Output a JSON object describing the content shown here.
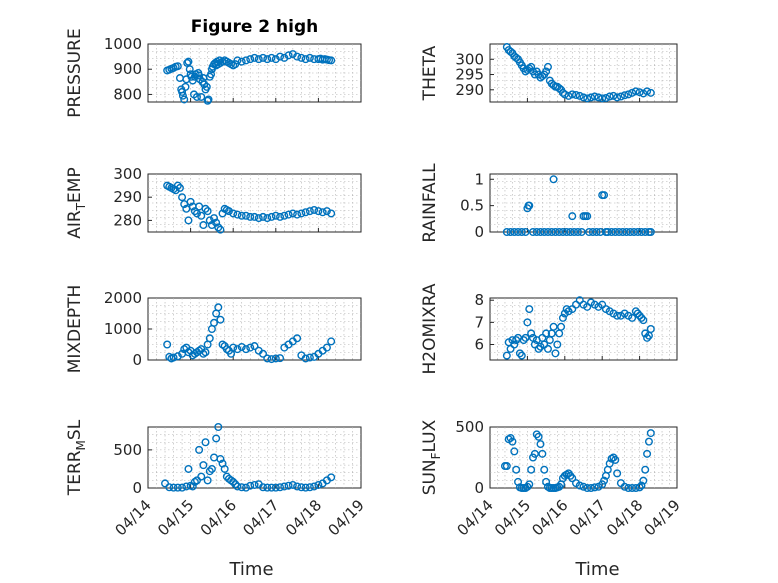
{
  "figure": {
    "title": "Figure 2 high",
    "xlabel": "Time"
  },
  "chart_data": [
    {
      "type": "scatter",
      "title": "Figure 2 high",
      "ylabel": "PRESSURE",
      "ylim": [
        770,
        1000
      ],
      "yticks": [
        800,
        900,
        1000
      ],
      "xlim": [
        "04/14",
        "04/19"
      ],
      "xticks": [
        "04/14",
        "04/15",
        "04/16",
        "04/17",
        "04/18",
        "04/19"
      ],
      "x_days": [
        0.45,
        0.5,
        0.55,
        0.6,
        0.65,
        0.7,
        0.75,
        0.78,
        0.8,
        0.82,
        0.85,
        0.88,
        0.9,
        0.92,
        0.95,
        0.98,
        1.0,
        1.02,
        1.05,
        1.08,
        1.1,
        1.12,
        1.15,
        1.18,
        1.2,
        1.22,
        1.25,
        1.28,
        1.3,
        1.32,
        1.35,
        1.38,
        1.4,
        1.42,
        1.45,
        1.48,
        1.5,
        1.52,
        1.55,
        1.58,
        1.6,
        1.62,
        1.65,
        1.68,
        1.7,
        1.75,
        1.8,
        1.85,
        1.9,
        1.95,
        2.0,
        2.05,
        2.1,
        2.2,
        2.3,
        2.4,
        2.5,
        2.6,
        2.7,
        2.8,
        2.9,
        3.0,
        3.1,
        3.2,
        3.3,
        3.4,
        3.5,
        3.6,
        3.7,
        3.8,
        3.9,
        4.0,
        4.05,
        4.1,
        4.15,
        4.2,
        4.25,
        4.3
      ],
      "values": [
        895,
        898,
        902,
        905,
        910,
        912,
        865,
        820,
        810,
        795,
        780,
        830,
        860,
        925,
        930,
        900,
        880,
        870,
        855,
        800,
        870,
        880,
        790,
        885,
        875,
        860,
        790,
        850,
        865,
        840,
        820,
        830,
        775,
        780,
        870,
        880,
        900,
        910,
        920,
        925,
        915,
        930,
        920,
        935,
        925,
        930,
        935,
        930,
        925,
        920,
        915,
        920,
        935,
        930,
        935,
        940,
        945,
        940,
        945,
        940,
        945,
        940,
        950,
        945,
        955,
        960,
        950,
        945,
        940,
        945,
        940,
        940,
        942,
        938,
        940,
        938,
        936,
        935
      ]
    },
    {
      "type": "scatter",
      "ylabel": "THETA",
      "ylim": [
        286,
        305
      ],
      "yticks": [
        290,
        295,
        300
      ],
      "xlim": [
        "04/14",
        "04/19"
      ],
      "xticks": [
        "04/14",
        "04/15",
        "04/16",
        "04/17",
        "04/18",
        "04/19"
      ],
      "x_days": [
        0.45,
        0.5,
        0.55,
        0.6,
        0.65,
        0.7,
        0.75,
        0.8,
        0.85,
        0.9,
        0.95,
        1.0,
        1.05,
        1.1,
        1.15,
        1.2,
        1.25,
        1.3,
        1.35,
        1.4,
        1.45,
        1.5,
        1.55,
        1.6,
        1.65,
        1.7,
        1.75,
        1.8,
        1.85,
        1.9,
        1.95,
        2.0,
        2.1,
        2.2,
        2.3,
        2.4,
        2.5,
        2.6,
        2.7,
        2.8,
        2.9,
        3.0,
        3.1,
        3.2,
        3.3,
        3.4,
        3.5,
        3.6,
        3.7,
        3.8,
        3.9,
        4.0,
        4.1,
        4.2,
        4.3
      ],
      "values": [
        304,
        303,
        302.5,
        302,
        301,
        300.5,
        300,
        299,
        298,
        297,
        296,
        296.5,
        297,
        297.5,
        296,
        295,
        296,
        295,
        294,
        294.5,
        295,
        296,
        297.5,
        293,
        292,
        291.5,
        291,
        291,
        290.5,
        290,
        289,
        288.5,
        288,
        288.5,
        288.3,
        288,
        287.5,
        287.2,
        287.5,
        287.8,
        287.5,
        287.2,
        287.3,
        287.8,
        288,
        287.5,
        287.8,
        288.2,
        288.5,
        289,
        289.5,
        289.2,
        288.8,
        289.5,
        289
      ]
    },
    {
      "type": "scatter",
      "ylabel": "AIR_TEMP",
      "ylim": [
        275,
        300
      ],
      "yticks": [
        280,
        290,
        300
      ],
      "xlim": [
        "04/14",
        "04/19"
      ],
      "xticks": [
        "04/14",
        "04/15",
        "04/16",
        "04/17",
        "04/18",
        "04/19"
      ],
      "x_days": [
        0.45,
        0.5,
        0.55,
        0.6,
        0.65,
        0.7,
        0.75,
        0.8,
        0.85,
        0.9,
        0.95,
        1.0,
        1.05,
        1.1,
        1.15,
        1.2,
        1.25,
        1.3,
        1.35,
        1.4,
        1.45,
        1.5,
        1.55,
        1.6,
        1.65,
        1.7,
        1.75,
        1.8,
        1.85,
        1.9,
        2.0,
        2.1,
        2.2,
        2.3,
        2.4,
        2.5,
        2.6,
        2.7,
        2.8,
        2.9,
        3.0,
        3.1,
        3.2,
        3.3,
        3.4,
        3.5,
        3.6,
        3.7,
        3.8,
        3.9,
        4.0,
        4.1,
        4.2,
        4.3
      ],
      "values": [
        295,
        294.5,
        294,
        293.5,
        293,
        295,
        294,
        290,
        287,
        285,
        280,
        288,
        286,
        284,
        283,
        286,
        282,
        278,
        285,
        284,
        280,
        278,
        281,
        279,
        277,
        276,
        283,
        285,
        284.5,
        284,
        283,
        282.5,
        282,
        282,
        281.5,
        281.5,
        281,
        281.5,
        281,
        281.5,
        282,
        281.5,
        282,
        282.5,
        283,
        282.5,
        283,
        283.5,
        284,
        284.5,
        284,
        283.5,
        284,
        283
      ]
    },
    {
      "type": "scatter",
      "ylabel": "RAINFALL",
      "ylim": [
        0,
        1.1
      ],
      "yticks": [
        0,
        0.5,
        1
      ],
      "xlim": [
        "04/14",
        "04/19"
      ],
      "xticks": [
        "04/14",
        "04/15",
        "04/16",
        "04/17",
        "04/18",
        "04/19"
      ],
      "x_days": [
        0.45,
        0.55,
        0.65,
        0.75,
        0.85,
        0.95,
        1.0,
        1.03,
        1.05,
        1.15,
        1.25,
        1.35,
        1.45,
        1.55,
        1.65,
        1.7,
        1.75,
        1.85,
        1.95,
        2.05,
        2.15,
        2.2,
        2.25,
        2.35,
        2.45,
        2.5,
        2.55,
        2.6,
        2.65,
        2.75,
        2.85,
        2.95,
        3.0,
        3.05,
        3.1,
        3.15,
        3.25,
        3.35,
        3.45,
        3.55,
        3.65,
        3.75,
        3.85,
        3.95,
        4.05,
        4.15,
        4.25,
        4.3
      ],
      "values": [
        0,
        0,
        0,
        0,
        0,
        0,
        0.45,
        0.5,
        0.5,
        0,
        0,
        0,
        0,
        0,
        0,
        1.0,
        0,
        0,
        0,
        0,
        0,
        0.3,
        0,
        0,
        0,
        0.3,
        0.3,
        0.3,
        0,
        0,
        0,
        0,
        0.7,
        0.7,
        0,
        0,
        0,
        0,
        0,
        0,
        0,
        0,
        0,
        0,
        0,
        0,
        0,
        0
      ]
    },
    {
      "type": "scatter",
      "ylabel": "MIXDEPTH",
      "ylim": [
        0,
        2000
      ],
      "yticks": [
        0,
        1000,
        2000
      ],
      "xlim": [
        "04/14",
        "04/19"
      ],
      "xticks": [
        "04/14",
        "04/15",
        "04/16",
        "04/17",
        "04/18",
        "04/19"
      ],
      "x_days": [
        0.45,
        0.5,
        0.55,
        0.6,
        0.7,
        0.8,
        0.85,
        0.9,
        0.95,
        1.0,
        1.05,
        1.1,
        1.15,
        1.2,
        1.25,
        1.3,
        1.35,
        1.4,
        1.45,
        1.5,
        1.55,
        1.6,
        1.65,
        1.7,
        1.75,
        1.8,
        1.85,
        1.9,
        1.95,
        2.0,
        2.1,
        2.2,
        2.3,
        2.4,
        2.5,
        2.6,
        2.7,
        2.8,
        2.9,
        3.0,
        3.1,
        3.2,
        3.3,
        3.4,
        3.5,
        3.6,
        3.7,
        3.8,
        3.9,
        4.0,
        4.1,
        4.2,
        4.3
      ],
      "values": [
        500,
        100,
        50,
        80,
        120,
        200,
        350,
        400,
        250,
        300,
        150,
        200,
        250,
        300,
        350,
        200,
        250,
        500,
        700,
        1000,
        1200,
        1500,
        1700,
        1300,
        500,
        450,
        350,
        300,
        200,
        400,
        350,
        420,
        350,
        400,
        450,
        300,
        200,
        50,
        30,
        50,
        60,
        400,
        500,
        600,
        700,
        150,
        50,
        80,
        100,
        200,
        300,
        400,
        600
      ]
    },
    {
      "type": "scatter",
      "ylabel": "H2OMIXRA",
      "ylim": [
        5.3,
        8.1
      ],
      "yticks": [
        6,
        7,
        8
      ],
      "xlim": [
        "04/14",
        "04/19"
      ],
      "xticks": [
        "04/14",
        "04/15",
        "04/16",
        "04/17",
        "04/18",
        "04/19"
      ],
      "x_days": [
        0.45,
        0.5,
        0.55,
        0.6,
        0.65,
        0.7,
        0.75,
        0.8,
        0.85,
        0.9,
        0.95,
        1.0,
        1.05,
        1.1,
        1.15,
        1.2,
        1.25,
        1.3,
        1.35,
        1.4,
        1.45,
        1.5,
        1.55,
        1.6,
        1.65,
        1.7,
        1.75,
        1.8,
        1.85,
        1.9,
        1.95,
        2.0,
        2.05,
        2.1,
        2.2,
        2.3,
        2.4,
        2.5,
        2.6,
        2.7,
        2.8,
        2.9,
        3.0,
        3.1,
        3.2,
        3.3,
        3.4,
        3.5,
        3.6,
        3.7,
        3.8,
        3.9,
        3.95,
        4.0,
        4.05,
        4.1,
        4.15,
        4.2,
        4.25,
        4.3
      ],
      "values": [
        5.5,
        6.1,
        5.8,
        6.2,
        6.0,
        6.2,
        6.3,
        5.6,
        5.5,
        6.2,
        6.3,
        7.0,
        7.6,
        6.5,
        6.3,
        6.0,
        6.2,
        5.8,
        5.9,
        6.3,
        6.0,
        6.5,
        5.8,
        6.2,
        6.5,
        6.8,
        5.6,
        6.0,
        6.5,
        6.8,
        7.2,
        7.4,
        7.6,
        7.5,
        7.6,
        7.8,
        8.0,
        7.8,
        7.7,
        7.9,
        7.8,
        7.7,
        7.8,
        7.6,
        7.5,
        7.4,
        7.3,
        7.3,
        7.4,
        7.3,
        7.2,
        7.5,
        7.4,
        7.3,
        7.2,
        7.1,
        6.5,
        6.3,
        6.4,
        6.7
      ]
    },
    {
      "type": "scatter",
      "ylabel": "TERR_MSL",
      "ylim": [
        0,
        800
      ],
      "yticks": [
        0,
        500
      ],
      "xlim": [
        "04/14",
        "04/19"
      ],
      "xticks": [
        "04/14",
        "04/15",
        "04/16",
        "04/17",
        "04/18",
        "04/19"
      ],
      "x_days": [
        0.4,
        0.5,
        0.6,
        0.7,
        0.8,
        0.9,
        0.95,
        1.0,
        1.05,
        1.1,
        1.15,
        1.2,
        1.25,
        1.3,
        1.35,
        1.4,
        1.45,
        1.5,
        1.55,
        1.6,
        1.65,
        1.7,
        1.75,
        1.8,
        1.85,
        1.9,
        1.95,
        2.0,
        2.05,
        2.1,
        2.2,
        2.3,
        2.4,
        2.5,
        2.6,
        2.7,
        2.8,
        2.9,
        3.0,
        3.1,
        3.2,
        3.3,
        3.4,
        3.5,
        3.6,
        3.7,
        3.8,
        3.9,
        4.0,
        4.1,
        4.2,
        4.3
      ],
      "values": [
        60,
        10,
        5,
        5,
        5,
        20,
        250,
        30,
        20,
        80,
        100,
        500,
        150,
        300,
        600,
        100,
        220,
        250,
        400,
        650,
        800,
        380,
        320,
        250,
        150,
        120,
        100,
        80,
        50,
        20,
        10,
        5,
        30,
        40,
        50,
        10,
        5,
        5,
        5,
        10,
        20,
        30,
        40,
        20,
        10,
        5,
        10,
        20,
        40,
        60,
        100,
        140
      ]
    },
    {
      "type": "scatter",
      "ylabel": "SUN_FLUX",
      "ylim": [
        0,
        500
      ],
      "yticks": [
        0,
        500
      ],
      "xlim": [
        "04/14",
        "04/19"
      ],
      "xticks": [
        "04/14",
        "04/15",
        "04/16",
        "04/17",
        "04/18",
        "04/19"
      ],
      "x_days": [
        0.4,
        0.45,
        0.5,
        0.55,
        0.6,
        0.65,
        0.7,
        0.75,
        0.8,
        0.85,
        0.9,
        0.95,
        1.0,
        1.05,
        1.1,
        1.15,
        1.2,
        1.25,
        1.3,
        1.35,
        1.4,
        1.45,
        1.5,
        1.55,
        1.6,
        1.65,
        1.7,
        1.75,
        1.8,
        1.85,
        1.9,
        1.95,
        2.0,
        2.05,
        2.1,
        2.15,
        2.2,
        2.3,
        2.4,
        2.5,
        2.6,
        2.7,
        2.8,
        2.9,
        3.0,
        3.05,
        3.1,
        3.15,
        3.2,
        3.25,
        3.3,
        3.35,
        3.4,
        3.5,
        3.6,
        3.7,
        3.8,
        3.9,
        4.0,
        4.05,
        4.1,
        4.15,
        4.2,
        4.25,
        4.3
      ],
      "values": [
        180,
        180,
        400,
        410,
        380,
        300,
        150,
        50,
        5,
        0,
        0,
        0,
        10,
        30,
        150,
        250,
        280,
        440,
        420,
        360,
        280,
        150,
        50,
        10,
        0,
        0,
        0,
        0,
        5,
        10,
        30,
        80,
        100,
        110,
        120,
        100,
        80,
        40,
        20,
        10,
        0,
        0,
        5,
        10,
        30,
        60,
        100,
        150,
        200,
        240,
        250,
        230,
        120,
        40,
        10,
        0,
        0,
        0,
        5,
        20,
        60,
        150,
        280,
        380,
        450
      ]
    }
  ]
}
